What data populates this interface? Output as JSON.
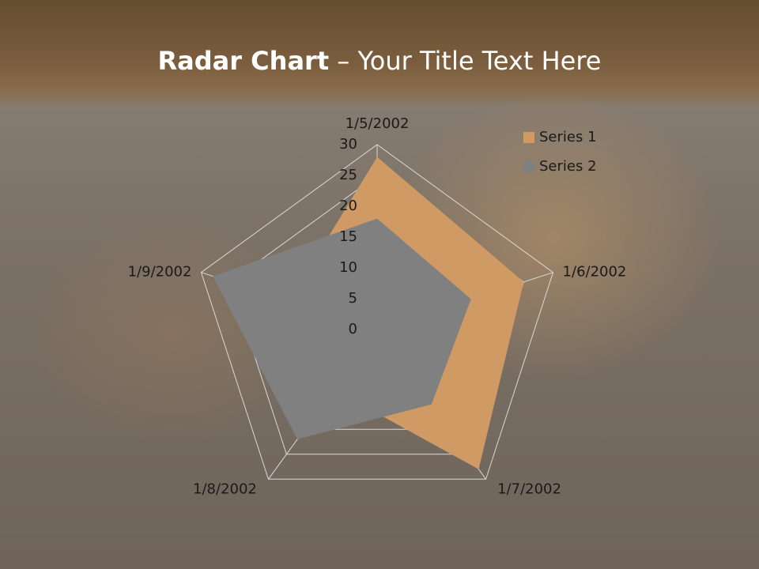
{
  "slide": {
    "title_strong": "Radar Chart",
    "title_text": "– Your Title Text Here"
  },
  "chart_data": {
    "type": "radar",
    "categories": [
      "1/5/2002",
      "1/6/2002",
      "1/7/2002",
      "1/8/2002",
      "1/9/2002"
    ],
    "series": [
      {
        "name": "Series 1",
        "color": "#cf9a63",
        "values": [
          28,
          25,
          28,
          12,
          15
        ]
      },
      {
        "name": "Series 2",
        "color": "#808080",
        "values": [
          18,
          16,
          15,
          22,
          28
        ]
      }
    ],
    "ylim": [
      0,
      30
    ],
    "yticks": [
      0,
      5,
      10,
      15,
      20,
      25,
      30
    ],
    "grid": true,
    "legend": "top-right"
  }
}
